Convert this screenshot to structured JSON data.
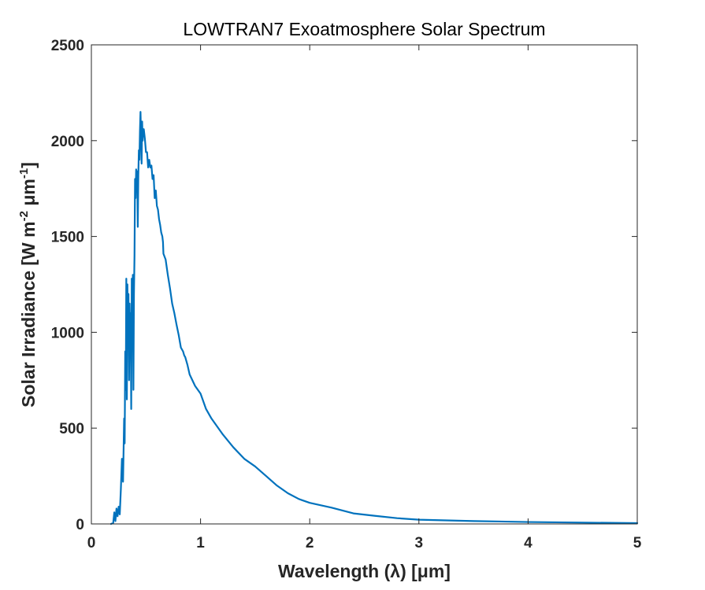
{
  "chart_data": {
    "type": "line",
    "title": "LOWTRAN7 Exoatmosphere Solar Spectrum",
    "xlabel": "Wavelength (λ) [μm]",
    "ylabel_parts": [
      "Solar Irradiance [W m",
      "-2",
      " μm",
      "-1",
      "]"
    ],
    "xlim": [
      0,
      5
    ],
    "ylim": [
      0,
      2500
    ],
    "xticks": [
      0,
      1,
      2,
      3,
      4,
      5
    ],
    "xtick_labels": [
      "0",
      "1",
      "2",
      "3",
      "4",
      "5"
    ],
    "yticks": [
      0,
      500,
      1000,
      1500,
      2000,
      2500
    ],
    "ytick_labels": [
      "0",
      "500",
      "1000",
      "1500",
      "2000",
      "2500"
    ],
    "grid": false,
    "colors": {
      "series": "#0072bd",
      "axes": "#262626",
      "title": "#000000"
    },
    "series": [
      {
        "name": "Solar irradiance",
        "x": [
          0.18,
          0.2,
          0.21,
          0.22,
          0.23,
          0.24,
          0.25,
          0.26,
          0.27,
          0.28,
          0.29,
          0.3,
          0.305,
          0.31,
          0.315,
          0.32,
          0.325,
          0.33,
          0.335,
          0.34,
          0.345,
          0.35,
          0.355,
          0.36,
          0.365,
          0.37,
          0.375,
          0.38,
          0.385,
          0.39,
          0.395,
          0.4,
          0.405,
          0.41,
          0.415,
          0.42,
          0.425,
          0.43,
          0.435,
          0.44,
          0.445,
          0.45,
          0.455,
          0.46,
          0.465,
          0.47,
          0.475,
          0.48,
          0.49,
          0.5,
          0.51,
          0.52,
          0.53,
          0.54,
          0.55,
          0.56,
          0.57,
          0.58,
          0.59,
          0.6,
          0.61,
          0.62,
          0.63,
          0.64,
          0.65,
          0.656,
          0.66,
          0.68,
          0.7,
          0.72,
          0.74,
          0.76,
          0.78,
          0.8,
          0.82,
          0.84,
          0.85,
          0.86,
          0.87,
          0.88,
          0.9,
          0.95,
          1.0,
          1.05,
          1.1,
          1.2,
          1.3,
          1.4,
          1.5,
          1.6,
          1.7,
          1.8,
          1.9,
          2.0,
          2.2,
          2.4,
          2.6,
          2.8,
          3.0,
          3.5,
          4.0,
          4.5,
          5.0
        ],
        "values": [
          0,
          5,
          60,
          15,
          80,
          40,
          90,
          50,
          180,
          340,
          220,
          550,
          420,
          900,
          700,
          1280,
          650,
          1250,
          1000,
          1200,
          750,
          1150,
          1000,
          1100,
          600,
          1280,
          1150,
          1300,
          700,
          1200,
          1400,
          1800,
          1700,
          1850,
          1780,
          1840,
          1550,
          1820,
          1950,
          1900,
          2050,
          2150,
          2030,
          1880,
          2100,
          2000,
          2060,
          2060,
          2010,
          1940,
          1940,
          1860,
          1900,
          1860,
          1870,
          1800,
          1820,
          1700,
          1740,
          1660,
          1640,
          1590,
          1560,
          1520,
          1500,
          1470,
          1410,
          1380,
          1300,
          1230,
          1150,
          1100,
          1040,
          985,
          920,
          900,
          880,
          870,
          850,
          830,
          780,
          720,
          680,
          600,
          550,
          470,
          400,
          340,
          300,
          250,
          200,
          160,
          130,
          110,
          85,
          55,
          42,
          30,
          22,
          15,
          10,
          7,
          4
        ]
      }
    ]
  }
}
